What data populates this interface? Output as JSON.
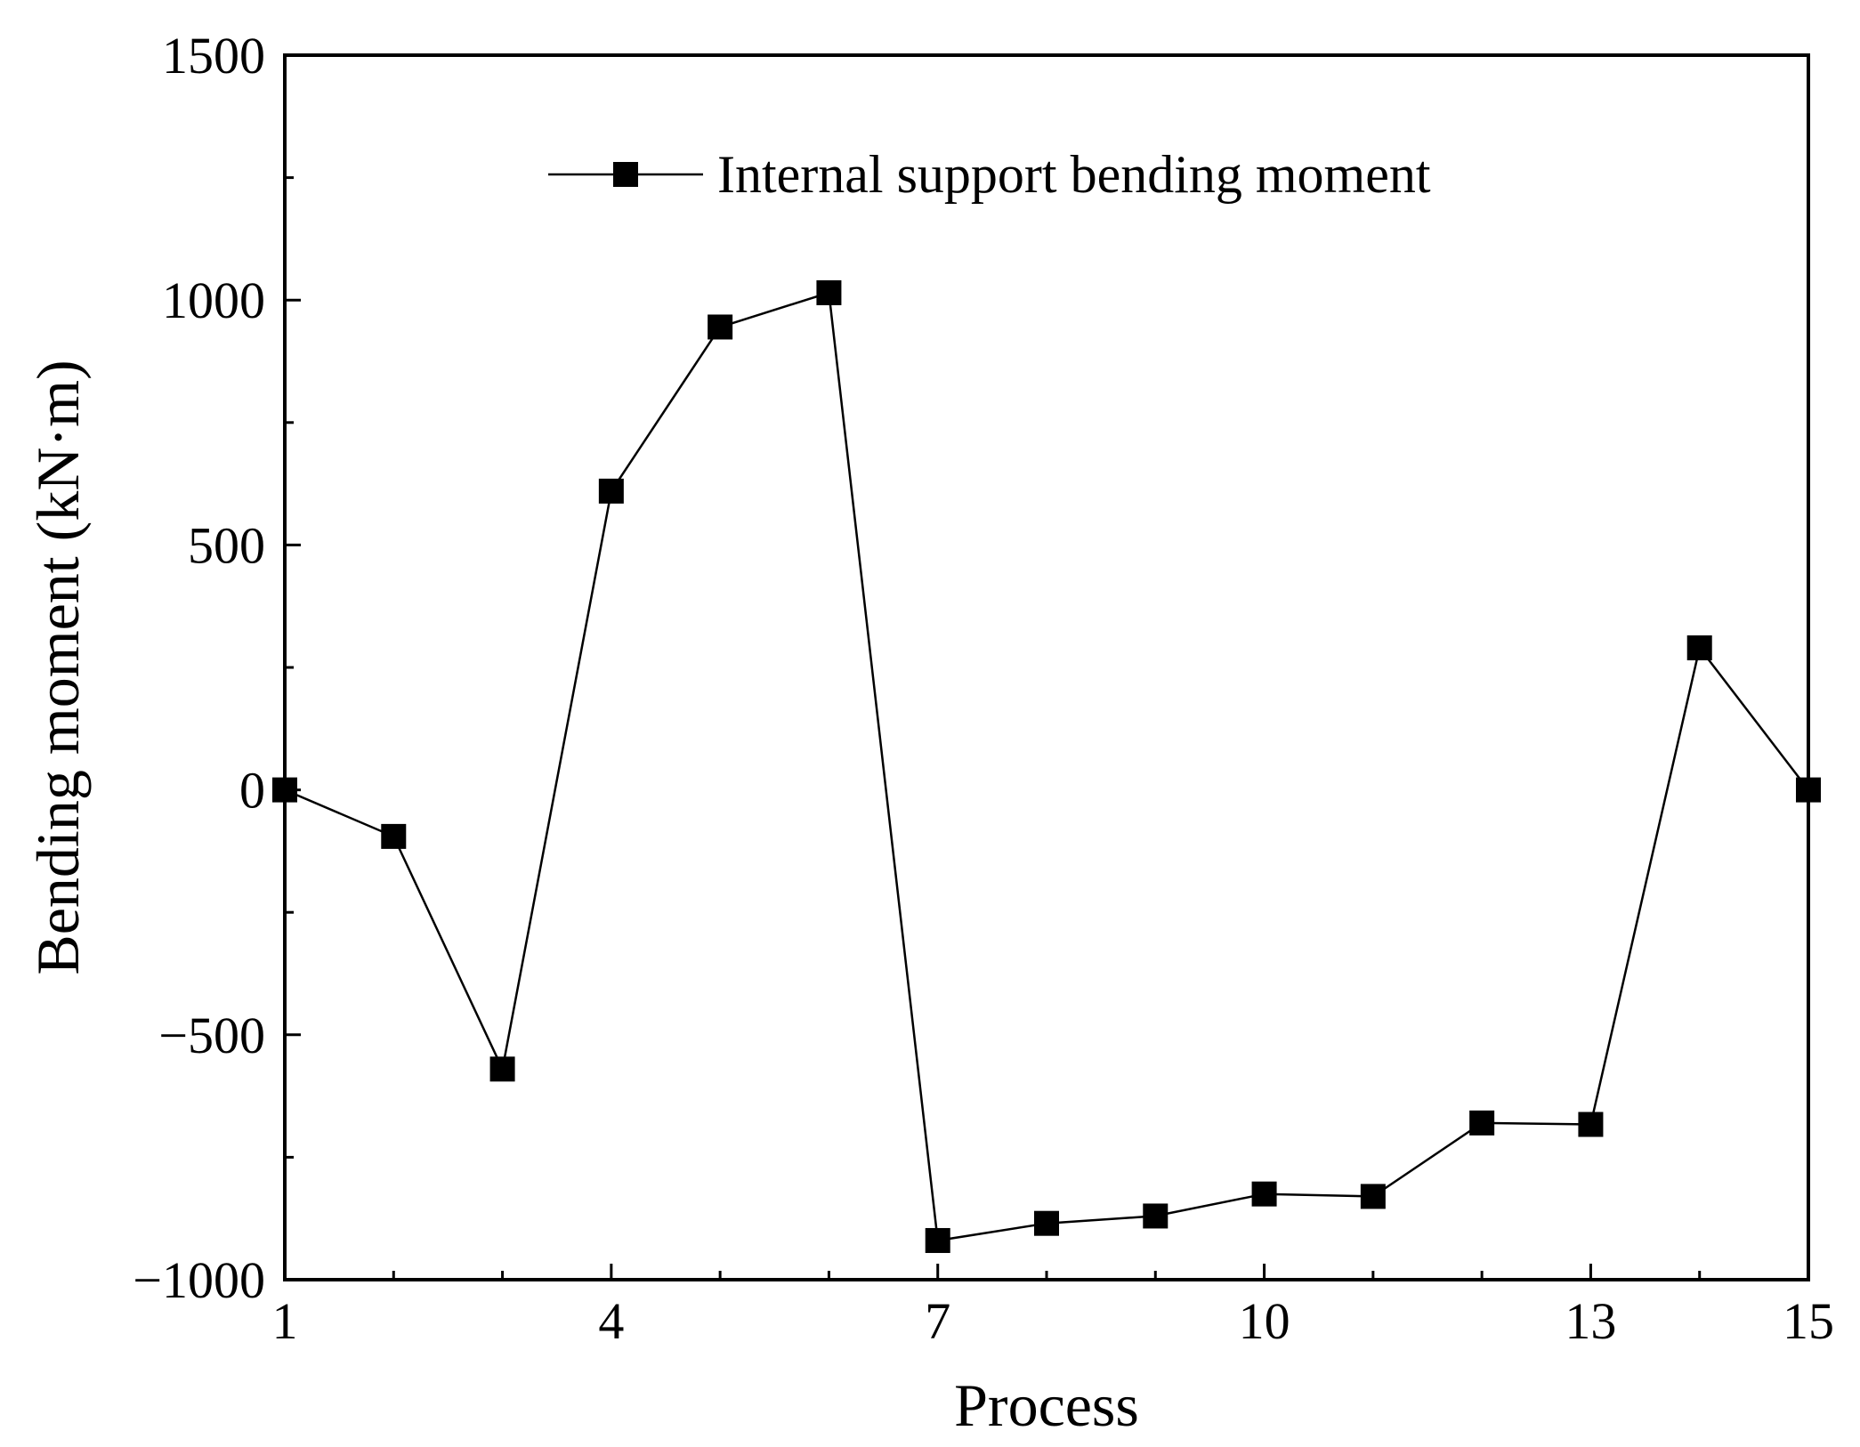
{
  "chart_data": {
    "type": "line",
    "xlabel": "Process",
    "ylabel": "Bending moment (kN·m)",
    "xlim": [
      1,
      15
    ],
    "ylim": [
      -1000,
      1500
    ],
    "x_ticks": [
      1,
      4,
      7,
      10,
      13,
      15
    ],
    "x_tick_labels": [
      "1",
      "4",
      "7",
      "10",
      "13",
      "15"
    ],
    "y_ticks": [
      -1000,
      -500,
      0,
      500,
      1000,
      1500
    ],
    "y_tick_labels": [
      "−1000",
      "−500",
      "0",
      "500",
      "1000",
      "1500"
    ],
    "y_minor_ticks": [
      -750,
      -250,
      250,
      750,
      1250
    ],
    "x_minor_ticks": [
      2,
      3,
      5,
      6,
      8,
      9,
      11,
      12,
      14
    ],
    "grid": false,
    "legend_position": "top-center",
    "series": [
      {
        "name": "Internal support bending moment",
        "marker": "filled-square",
        "color": "#000000",
        "x": [
          1,
          2,
          3,
          4,
          5,
          6,
          7,
          8,
          9,
          10,
          11,
          12,
          13,
          14,
          15
        ],
        "y": [
          0,
          -95,
          -570,
          610,
          945,
          1015,
          -920,
          -885,
          -870,
          -825,
          -830,
          -680,
          -683,
          290,
          0
        ]
      }
    ]
  }
}
